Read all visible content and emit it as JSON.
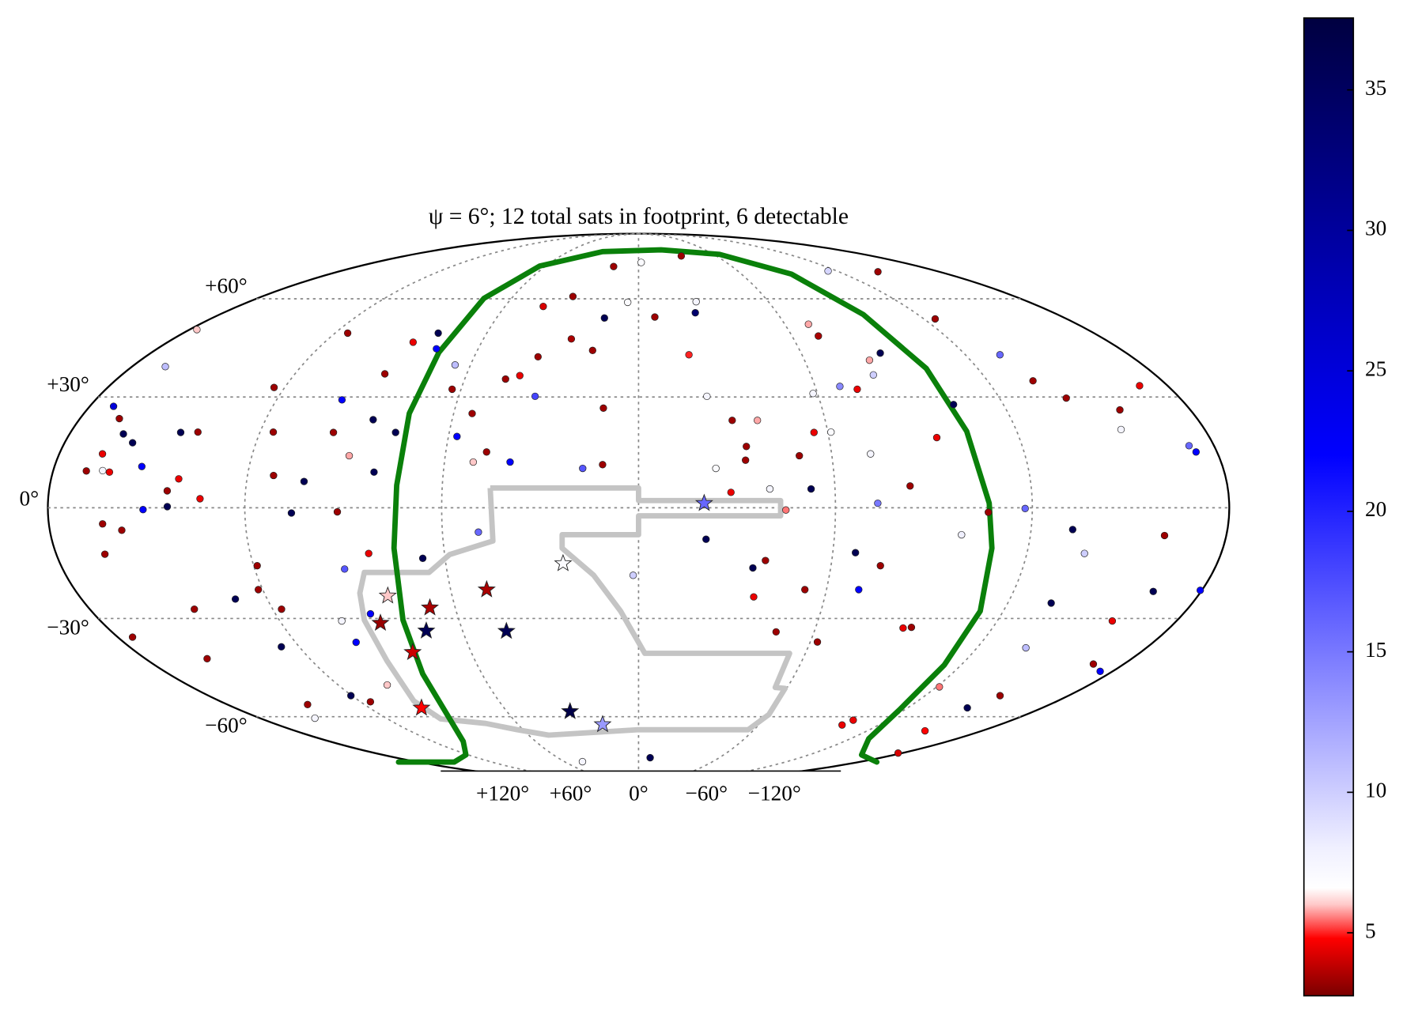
{
  "chart_data": {
    "type": "mollweide-scatter",
    "title": "ψ = 6°; 12 total sats in footprint, 6 detectable",
    "lon_ticks": [
      {
        "value": 120,
        "label": "+120°"
      },
      {
        "value": 60,
        "label": "+60°"
      },
      {
        "value": 0,
        "label": "0°"
      },
      {
        "value": -60,
        "label": "−60°"
      },
      {
        "value": -120,
        "label": "−120°"
      }
    ],
    "lat_ticks": [
      {
        "value": 60,
        "label": "+60°"
      },
      {
        "value": 30,
        "label": "+30°"
      },
      {
        "value": 0,
        "label": "0°"
      },
      {
        "value": -30,
        "label": "−30°"
      },
      {
        "value": -60,
        "label": "−60°"
      }
    ],
    "grid": true,
    "colorbar": {
      "clim": [
        2.76,
        37.56
      ],
      "ticks": [
        5,
        10,
        15,
        20,
        25,
        30,
        35
      ],
      "colormap": [
        {
          "value": 2.76,
          "color": "#7a0000"
        },
        {
          "value": 4.8,
          "color": "#ff0000"
        },
        {
          "value": 6.0,
          "color": "#ffc8c8"
        },
        {
          "value": 6.6,
          "color": "#ffffff"
        },
        {
          "value": 8,
          "color": "#f0f0ff"
        },
        {
          "value": 22,
          "color": "#0000ff"
        },
        {
          "value": 37.56,
          "color": "#000040"
        }
      ]
    },
    "series": [
      {
        "marker": "circle",
        "lon": [
          16,
          -1.8,
          -32.9,
          -114.6,
          -143.4,
          31.4,
          42.8,
          5,
          14.4,
          -6.9,
          -26.6,
          -24.6,
          -124.7,
          -69.7,
          -70.3,
          115,
          79.2,
          86.2,
          75.6,
          26,
          17.1,
          36.7,
          -18.5,
          -83.5,
          -89.2,
          -132.7,
          168.2,
          177.1,
          65.5,
          88.6,
          41.3,
          45.9,
          -81.8,
          -68.4,
          -73.9,
          -135.6,
          -170.5,
          123.6,
          63,
          98.3,
          34.5,
          -22.8,
          -58.5,
          -142.2,
          -103.6,
          172.2,
          11.5,
          54,
          -157,
          167.3,
          85.4,
          -30.1,
          -38.2,
          -153.4,
          163,
          145.1,
          139.7,
          115.8,
          96.7,
          77,
          57.3,
          -55.6,
          -61,
          -94,
          158.7,
          -33.7,
          -172.2,
          -173.5,
          47.3,
          89.8,
          -49.9,
          -72.1,
          166.6,
          -33.1,
          51.1,
          39.7,
          153.1,
          11.1,
          17.2,
          -23.8,
          169.8,
          164.8,
          162.6,
          112,
          81.3,
          140.9,
          102.4,
          143.9,
          133.7,
          -40.1,
          -52.7,
          -28.2,
          -83,
          -72.9,
          143.6,
          151,
          -117.8,
          -44.9,
          -106.6,
          105.8,
          91.8,
          163.6,
          158,
          49,
          -132.7,
          -98.9,
          -20.7,
          -161.1,
          83.4,
          -137.8,
          -67,
          66.9,
          -39.4,
          -35.7,
          -75.4,
          165,
          91.9,
          1.7,
          118.9,
          121.4,
          -70.3,
          -53.1,
          -37.1,
          -164.7,
          -179.5,
          130.3,
          145.7,
          117.1,
          -134.1,
          88.6,
          99.3,
          -158.5,
          -89.7,
          -92.4,
          -47,
          174.9,
          98.8,
          -62.5,
          126.3,
          -137.3,
          157.5,
          -168.7,
          -175.3,
          100.4,
          -121.1,
          120.4,
          -151.3,
          115.7,
          144.9,
          -146.6,
          153.9,
          -103.5,
          -101.7,
          -150.2,
          -177.3,
          -8.6,
          45.4
        ],
        "lat": [
          72,
          73.7,
          76.5,
          70.2,
          69.9,
          60.8,
          57.4,
          58.8,
          53.6,
          53.9,
          59,
          55.3,
          53.3,
          51.6,
          47.9,
          48.8,
          48.8,
          46,
          44,
          47,
          43.5,
          41.6,
          42.2,
          40.6,
          42.7,
          42.2,
          38.7,
          49.9,
          39.2,
          36.6,
          36.1,
          35.1,
          36.3,
          33,
          32.2,
          34.6,
          33.2,
          32.7,
          32.2,
          29.2,
          30.2,
          30.2,
          31,
          29.7,
          27.9,
          27.4,
          26.9,
          25.4,
          26.4,
          24,
          23.7,
          23.5,
          23.5,
          21,
          19.8,
          20.2,
          20.3,
          20.3,
          20.2,
          20.2,
          19.1,
          20.2,
          20.3,
          18.8,
          17.4,
          16.4,
          16.6,
          14.9,
          14.9,
          13.9,
          13.9,
          14.4,
          14.4,
          12.7,
          12.2,
          12.2,
          11,
          11.5,
          10.5,
          10.5,
          9.8,
          9.9,
          9.5,
          8.6,
          9.5,
          7.7,
          7,
          4.5,
          2.4,
          5,
          5,
          4.1,
          5.8,
          1.2,
          0.3,
          -0.5,
          -0.2,
          -0.6,
          -1.2,
          -1.4,
          -1.1,
          -4.3,
          -6,
          -6.5,
          -5.8,
          -7.2,
          -8.4,
          -7.4,
          -12.2,
          -12.2,
          -12,
          -13.5,
          -14.1,
          -16.1,
          -15.5,
          -12.4,
          -16.4,
          -18.1,
          -15.5,
          -22,
          -22,
          -22,
          -24,
          -22.5,
          -22.2,
          -24.6,
          -27.4,
          -27.4,
          -25.7,
          -28.7,
          -30.7,
          -30.7,
          -32.7,
          -32.5,
          -33.8,
          -35.3,
          -36.8,
          -36.7,
          -38.1,
          -38.4,
          -41.6,
          -43.2,
          -45.4,
          -49.6,
          -50.2,
          -53,
          -53,
          -55,
          -55.9,
          -57,
          -60.5,
          -61.2,
          -62.9,
          -65,
          -73.7,
          -75.7,
          -77.5
        ],
        "values": [
          3.3,
          7,
          3.3,
          9.5,
          3.3,
          3.3,
          4.2,
          7,
          36,
          3.3,
          7.5,
          34,
          3.3,
          5.8,
          3.5,
          3.3,
          36,
          4.5,
          22,
          3.5,
          3.3,
          3.3,
          5,
          5.8,
          36,
          16,
          11,
          6,
          11,
          3.3,
          4.5,
          3.3,
          10,
          14,
          4.5,
          3.3,
          4.5,
          3.3,
          3.3,
          22,
          18,
          7.5,
          7.5,
          3.3,
          36,
          25,
          3.3,
          3.3,
          3.3,
          3.3,
          36,
          3.3,
          5.8,
          7.5,
          36,
          36,
          3.3,
          3.3,
          3.3,
          36,
          22,
          4.5,
          7,
          4.5,
          36,
          3.3,
          16,
          22,
          3.3,
          5.8,
          3.3,
          7.5,
          4.5,
          3.3,
          6,
          22,
          22,
          3.3,
          17,
          7,
          3.3,
          7.5,
          4.5,
          3.3,
          36,
          4.5,
          36,
          3.3,
          4.5,
          7.5,
          36,
          4.5,
          3.3,
          15,
          36,
          22,
          16,
          5.5,
          3.3,
          36,
          3.3,
          3.3,
          3.3,
          16,
          36,
          8,
          36,
          3.3,
          4.5,
          10,
          36,
          36,
          3.3,
          36,
          3.3,
          3.3,
          17,
          10,
          3.3,
          3.3,
          22,
          3.3,
          4.5,
          36,
          22,
          36,
          3.3,
          3.3,
          36,
          22,
          7.5,
          4.5,
          4.5,
          3.3,
          3.3,
          3.3,
          22,
          3.3,
          36,
          11,
          3.3,
          3.3,
          22,
          6,
          5.5,
          36,
          3.3,
          3.3,
          3.3,
          36,
          7.5,
          4.5,
          4.5,
          4.8,
          4.2,
          36,
          7.5
        ]
      },
      {
        "marker": "star",
        "lon": [
          -20,
          23.5,
          80.7,
          48.5,
          68.3,
          86.7,
          72.4,
          45.1,
          81,
          96.8,
          31.2,
          17.9
        ],
        "lat": [
          1.2,
          -14.9,
          -23.7,
          -22,
          -27,
          -31.3,
          -33.5,
          -33.6,
          -39.7,
          -57,
          -58.2,
          -62.7
        ],
        "values": [
          16,
          7,
          6,
          3.5,
          3.5,
          3.2,
          36,
          36,
          4,
          4.8,
          37,
          13
        ]
      }
    ]
  }
}
